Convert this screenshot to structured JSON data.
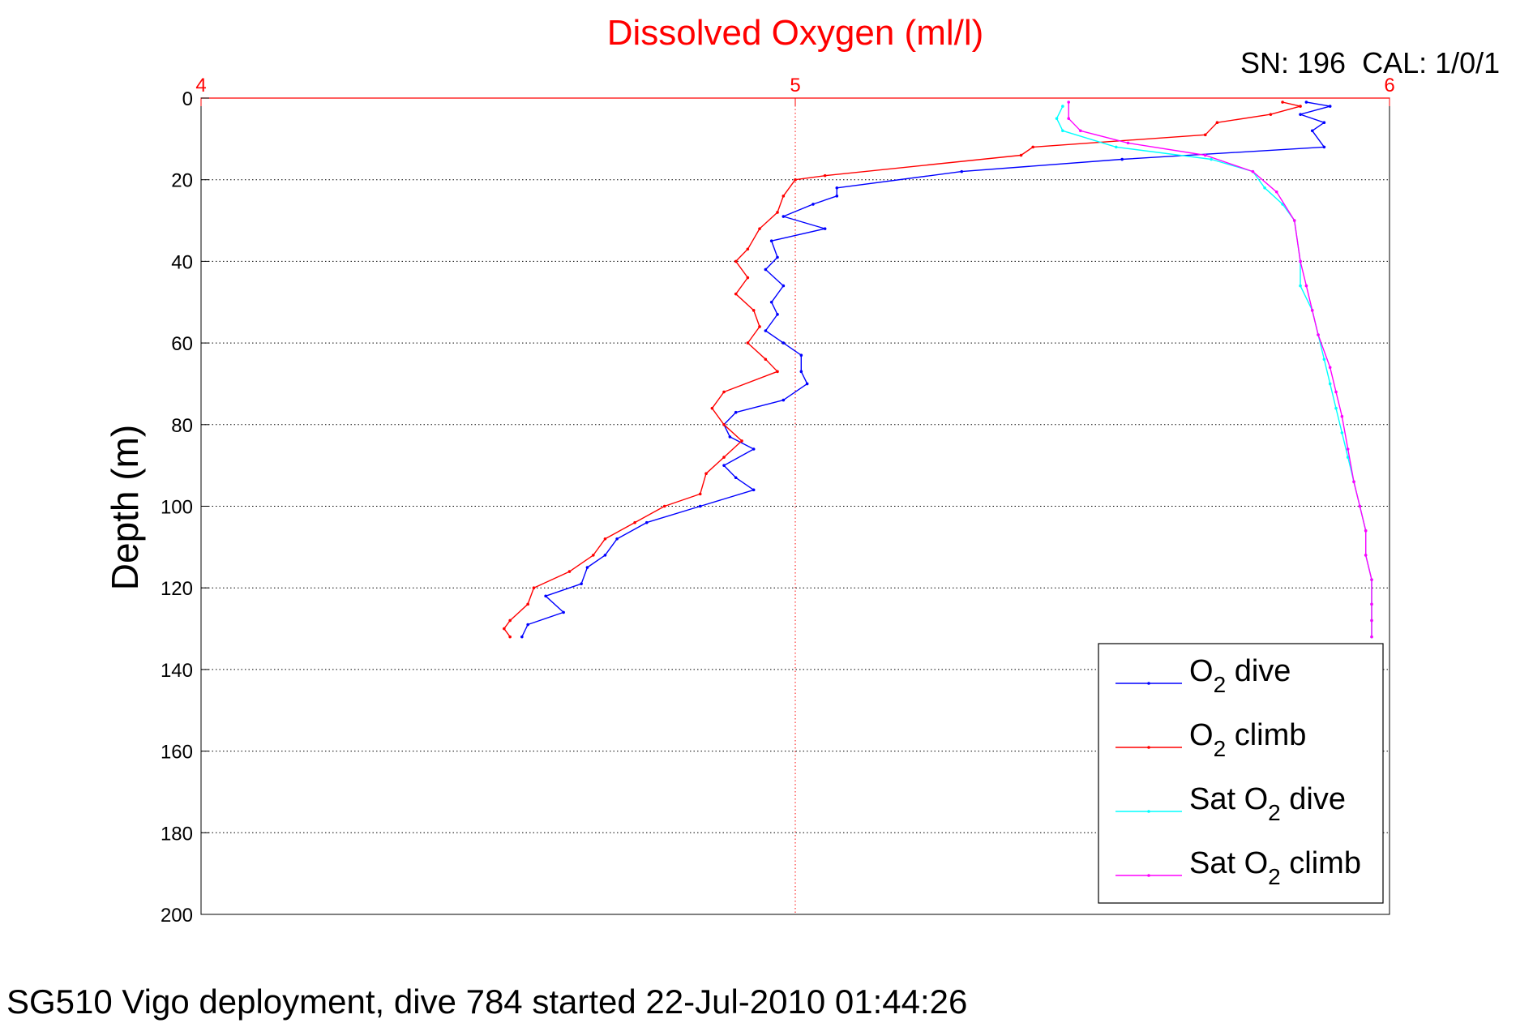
{
  "chart_data": {
    "type": "line",
    "title": "Dissolved Oxygen (ml/l)",
    "title_color": "#ff0000",
    "top_right_note": "SN: 196  CAL: 1/0/1",
    "ylabel": "Depth (m)",
    "xlabel": "",
    "xlim": [
      4,
      6
    ],
    "ylim": [
      0,
      200
    ],
    "y_reversed": true,
    "x_axis_position": "top",
    "x_axis_color": "#ff0000",
    "x_ticks": [
      "4",
      "5",
      "6"
    ],
    "y_ticks": [
      "0",
      "20",
      "40",
      "60",
      "80",
      "100",
      "120",
      "140",
      "160",
      "180",
      "200"
    ],
    "grid": true,
    "legend_position": "bottom-right",
    "legend": [
      {
        "pre": "O",
        "sub": "2",
        "post": " dive",
        "color": "#0000ff"
      },
      {
        "pre": "O",
        "sub": "2",
        "post": " climb",
        "color": "#ff0000"
      },
      {
        "pre": "Sat O",
        "sub": "2",
        "post": " dive",
        "color": "#00ffff"
      },
      {
        "pre": "Sat O",
        "sub": "2",
        "post": " climb",
        "color": "#ff00ff"
      }
    ],
    "series": [
      {
        "key": "o2_dive",
        "color": "#0000ff",
        "points": [
          [
            5.86,
            1
          ],
          [
            5.9,
            2
          ],
          [
            5.85,
            4
          ],
          [
            5.89,
            6
          ],
          [
            5.87,
            8
          ],
          [
            5.89,
            12
          ],
          [
            5.55,
            15
          ],
          [
            5.28,
            18
          ],
          [
            5.07,
            22
          ],
          [
            5.07,
            24
          ],
          [
            5.03,
            26
          ],
          [
            4.98,
            29
          ],
          [
            5.05,
            32
          ],
          [
            4.96,
            35
          ],
          [
            4.97,
            39
          ],
          [
            4.95,
            42
          ],
          [
            4.98,
            46
          ],
          [
            4.96,
            50
          ],
          [
            4.97,
            53
          ],
          [
            4.95,
            57
          ],
          [
            4.98,
            60
          ],
          [
            5.01,
            63
          ],
          [
            5.01,
            67
          ],
          [
            5.02,
            70
          ],
          [
            4.98,
            74
          ],
          [
            4.9,
            77
          ],
          [
            4.88,
            80
          ],
          [
            4.89,
            83
          ],
          [
            4.93,
            86
          ],
          [
            4.88,
            90
          ],
          [
            4.9,
            93
          ],
          [
            4.93,
            96
          ],
          [
            4.84,
            100
          ],
          [
            4.75,
            104
          ],
          [
            4.7,
            108
          ],
          [
            4.68,
            112
          ],
          [
            4.65,
            115
          ],
          [
            4.64,
            119
          ],
          [
            4.58,
            122
          ],
          [
            4.61,
            126
          ],
          [
            4.55,
            129
          ],
          [
            4.54,
            132
          ]
        ]
      },
      {
        "key": "o2_climb",
        "color": "#ff0000",
        "points": [
          [
            5.82,
            1
          ],
          [
            5.85,
            2
          ],
          [
            5.8,
            4
          ],
          [
            5.71,
            6
          ],
          [
            5.69,
            9
          ],
          [
            5.4,
            12
          ],
          [
            5.38,
            14
          ],
          [
            5.05,
            19
          ],
          [
            5.0,
            20
          ],
          [
            4.98,
            24
          ],
          [
            4.97,
            28
          ],
          [
            4.94,
            32
          ],
          [
            4.92,
            37
          ],
          [
            4.9,
            40
          ],
          [
            4.92,
            44
          ],
          [
            4.9,
            48
          ],
          [
            4.93,
            52
          ],
          [
            4.94,
            56
          ],
          [
            4.92,
            60
          ],
          [
            4.95,
            64
          ],
          [
            4.97,
            67
          ],
          [
            4.88,
            72
          ],
          [
            4.86,
            76
          ],
          [
            4.88,
            80
          ],
          [
            4.91,
            84
          ],
          [
            4.88,
            88
          ],
          [
            4.85,
            92
          ],
          [
            4.84,
            97
          ],
          [
            4.78,
            100
          ],
          [
            4.73,
            104
          ],
          [
            4.68,
            108
          ],
          [
            4.66,
            112
          ],
          [
            4.62,
            116
          ],
          [
            4.56,
            120
          ],
          [
            4.55,
            124
          ],
          [
            4.52,
            128
          ],
          [
            4.51,
            130
          ],
          [
            4.52,
            132
          ]
        ]
      },
      {
        "key": "sat_o2_dive",
        "color": "#00ffff",
        "points": [
          [
            5.45,
            2
          ],
          [
            5.44,
            5
          ],
          [
            5.45,
            8
          ],
          [
            5.54,
            12
          ],
          [
            5.7,
            15
          ],
          [
            5.77,
            18
          ],
          [
            5.79,
            22
          ],
          [
            5.82,
            26
          ],
          [
            5.84,
            30
          ],
          [
            5.85,
            40
          ],
          [
            5.85,
            46
          ],
          [
            5.87,
            52
          ],
          [
            5.88,
            58
          ],
          [
            5.89,
            64
          ],
          [
            5.9,
            70
          ],
          [
            5.91,
            76
          ],
          [
            5.92,
            82
          ],
          [
            5.93,
            88
          ],
          [
            5.94,
            94
          ],
          [
            5.95,
            100
          ],
          [
            5.96,
            106
          ],
          [
            5.96,
            112
          ],
          [
            5.97,
            118
          ],
          [
            5.97,
            124
          ],
          [
            5.97,
            128
          ],
          [
            5.97,
            132
          ]
        ]
      },
      {
        "key": "sat_o2_climb",
        "color": "#ff00ff",
        "points": [
          [
            5.46,
            1
          ],
          [
            5.46,
            5
          ],
          [
            5.48,
            8
          ],
          [
            5.56,
            11
          ],
          [
            5.69,
            14
          ],
          [
            5.77,
            18
          ],
          [
            5.81,
            23
          ],
          [
            5.84,
            30
          ],
          [
            5.85,
            40
          ],
          [
            5.86,
            46
          ],
          [
            5.87,
            52
          ],
          [
            5.88,
            58
          ],
          [
            5.9,
            66
          ],
          [
            5.91,
            72
          ],
          [
            5.92,
            78
          ],
          [
            5.93,
            86
          ],
          [
            5.94,
            94
          ],
          [
            5.95,
            100
          ],
          [
            5.96,
            106
          ],
          [
            5.96,
            112
          ],
          [
            5.97,
            118
          ],
          [
            5.97,
            124
          ],
          [
            5.97,
            128
          ],
          [
            5.97,
            132
          ]
        ]
      }
    ]
  },
  "caption": "SG510 Vigo deployment, dive 784 started 22-Jul-2010 01:44:26"
}
